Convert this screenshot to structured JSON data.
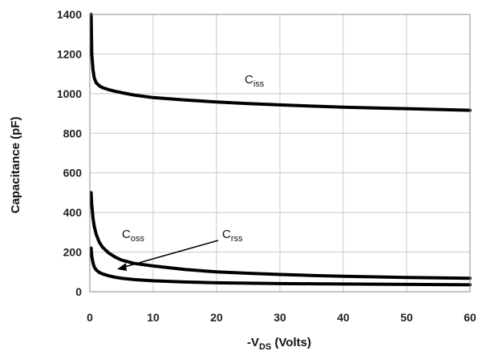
{
  "chart_data": {
    "type": "line",
    "xlabel": {
      "prefix": "-V",
      "sub": "DS",
      "suffix": " (Volts)"
    },
    "ylabel": "Capacitance (pF)",
    "xlim": [
      0,
      60
    ],
    "ylim": [
      0,
      1400
    ],
    "x_ticks": [
      0,
      10,
      20,
      30,
      40,
      50,
      60
    ],
    "y_ticks": [
      0,
      200,
      400,
      600,
      800,
      1000,
      1200,
      1400
    ],
    "grid": true,
    "series": [
      {
        "name": "Ciss",
        "label": {
          "main": "C",
          "sub": "iss"
        },
        "x": [
          0.2,
          0.3,
          0.5,
          0.7,
          1,
          1.5,
          2,
          3,
          4,
          5,
          7,
          10,
          15,
          20,
          25,
          30,
          35,
          40,
          45,
          50,
          55,
          60
        ],
        "y": [
          1400,
          1200,
          1120,
          1080,
          1055,
          1040,
          1030,
          1020,
          1012,
          1005,
          993,
          980,
          968,
          958,
          950,
          943,
          937,
          932,
          928,
          924,
          920,
          916
        ]
      },
      {
        "name": "Coss",
        "label": {
          "main": "C",
          "sub": "oss"
        },
        "x": [
          0.2,
          0.3,
          0.5,
          0.7,
          1,
          1.5,
          2,
          3,
          4,
          5,
          7,
          10,
          15,
          20,
          25,
          30,
          35,
          40,
          45,
          50,
          55,
          60
        ],
        "y": [
          500,
          440,
          370,
          330,
          290,
          250,
          225,
          195,
          175,
          160,
          143,
          130,
          112,
          100,
          93,
          87,
          82,
          78,
          75,
          72,
          70,
          68
        ]
      },
      {
        "name": "Crss",
        "label": {
          "main": "C",
          "sub": "rss"
        },
        "x": [
          0.2,
          0.3,
          0.5,
          0.7,
          1,
          1.5,
          2,
          3,
          4,
          5,
          7,
          10,
          15,
          20,
          25,
          30,
          35,
          40,
          45,
          50,
          55,
          60
        ],
        "y": [
          220,
          180,
          145,
          125,
          110,
          97,
          90,
          80,
          73,
          68,
          61,
          55,
          49,
          45,
          43,
          41,
          40,
          39,
          38,
          37,
          36,
          35
        ]
      }
    ]
  }
}
